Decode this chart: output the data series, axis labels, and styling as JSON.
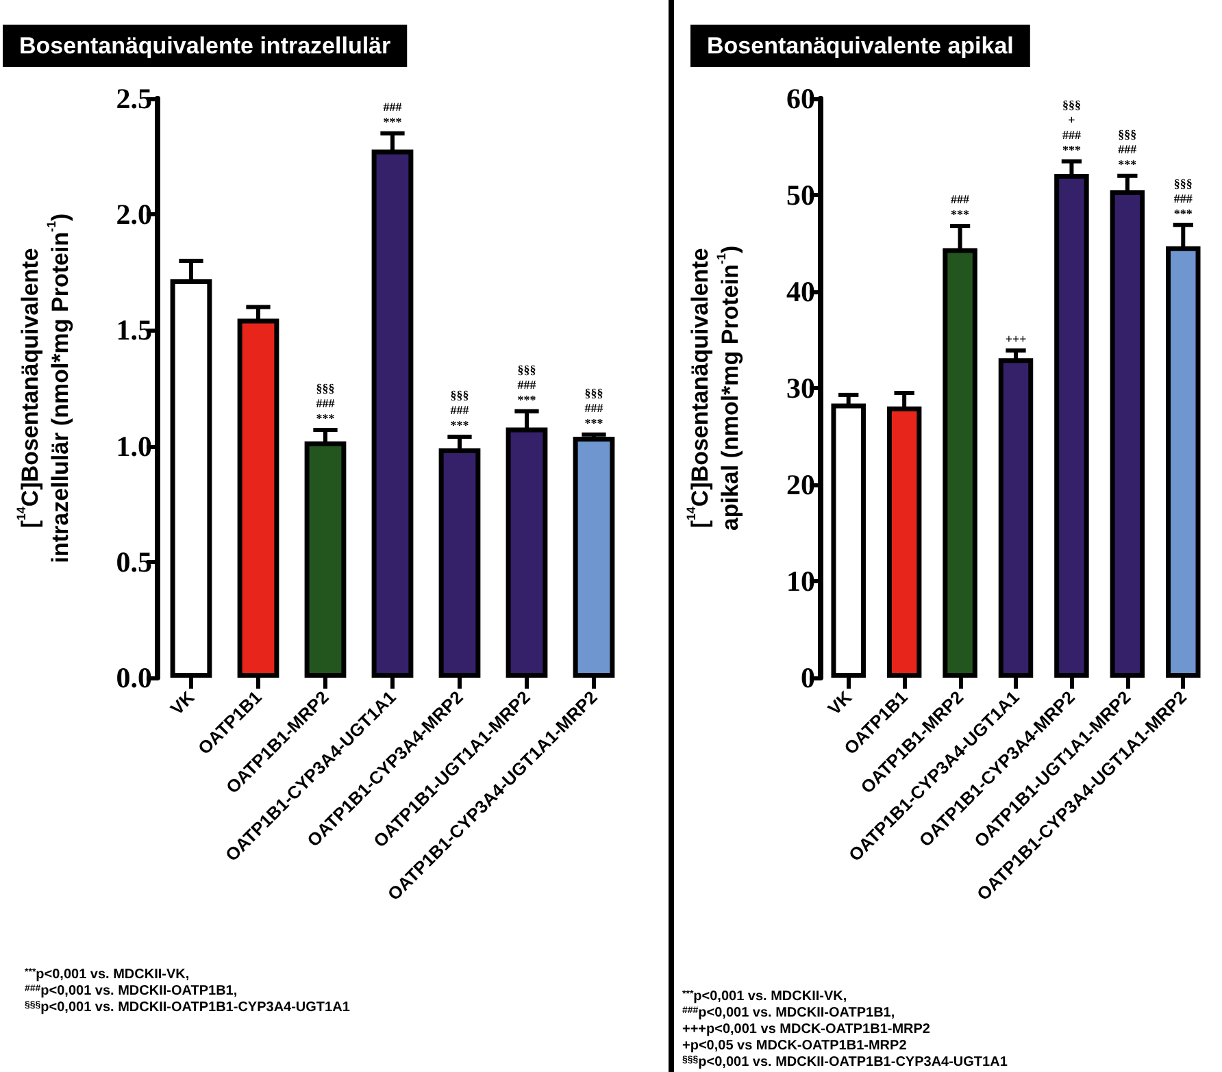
{
  "chart_data": [
    {
      "type": "bar",
      "title": "Bosentanäquivalente intrazellulär",
      "ylabel": "[$^{14}$C]Bosentanäquivalente intrazellulär (nmol*mg Protein$^{-1}$)",
      "categories": [
        "VK",
        "OATP1B1",
        "OATP1B1-MRP2",
        "OATP1B1-CYP3A4-UGT1A1",
        "OATP1B1-CYP3A4-MRP2",
        "OATP1B1-UGT1A1-MRP2",
        "OATP1B1-CYP3A4-UGT1A1-MRP2"
      ],
      "values": [
        1.72,
        1.55,
        1.02,
        2.28,
        0.99,
        1.08,
        1.04
      ],
      "errors": [
        0.08,
        0.05,
        0.05,
        0.07,
        0.05,
        0.07,
        0.01
      ],
      "colors": [
        "#ffffff",
        "#e8251a",
        "#23561e",
        "#35206a",
        "#35206a",
        "#35206a",
        "#6f96cf"
      ],
      "ylim": [
        0,
        2.5
      ],
      "yticks": [
        {
          "value": 0,
          "label": "0.0"
        },
        0.5,
        {
          "value": 1,
          "label": "1.0"
        },
        1.5,
        {
          "value": 2,
          "label": "2.0"
        },
        2.5
      ],
      "annotations": [
        {
          "text": "§§§\n###\n***",
          "x": "OATP1B1-MRP2",
          "y": 1.07
        },
        {
          "text": "###\n***",
          "x": "OATP1B1-CYP3A4-UGT1A1",
          "y": 2.35
        },
        {
          "text": "§§§\n###\n***",
          "x": "OATP1B1-CYP3A4-MRP2",
          "y": 1.04
        },
        {
          "text": "§§§\n###\n***",
          "x": "OATP1B1-UGT1A1-MRP2",
          "y": 1.15
        },
        {
          "text": "§§§\n###\n***",
          "x": "OATP1B1-CYP3A4-UGT1A1-MRP2",
          "y": 1.05
        },
        "$^{***}$p<0,001 vs. MDCKII-VK,",
        "$^{###}$p<0,001 vs. MDCKII-OATP1B1,",
        "$^{§§§}$p<0,001 vs. MDCKII-OATP1B1-CYP3A4-UGT1A1"
      ]
    },
    {
      "type": "bar",
      "title": "Bosentanäquivalente apikal",
      "ylabel": "[$^{14}$C]Bosentanäquivalente apikal (nmol*mg Protein$^{-1}$)",
      "categories": [
        "VK",
        "OATP1B1",
        "OATP1B1-MRP2",
        "OATP1B1-CYP3A4-UGT1A1",
        "OATP1B1-CYP3A4-MRP2",
        "OATP1B1-UGT1A1-MRP2",
        "OATP1B1-CYP3A4-UGT1A1-MRP2"
      ],
      "values": [
        28.4,
        28.1,
        44.5,
        33.1,
        52.2,
        50.5,
        44.7
      ],
      "errors": [
        0.9,
        1.4,
        2.3,
        0.8,
        1.3,
        1.5,
        2.2
      ],
      "colors": [
        "#ffffff",
        "#e8251a",
        "#23561e",
        "#35206a",
        "#35206a",
        "#35206a",
        "#6f96cf"
      ],
      "ylim": [
        0,
        60
      ],
      "yticks": [
        0,
        10,
        20,
        30,
        40,
        50,
        60
      ],
      "annotations": [
        {
          "text": "###\n***",
          "x": "OATP1B1-MRP2",
          "y": 46.8
        },
        {
          "text": "+++",
          "x": "OATP1B1-CYP3A4-UGT1A1",
          "y": 33.9
        },
        {
          "text": "§§§\n+\n###\n***",
          "x": "OATP1B1-CYP3A4-MRP2",
          "y": 53.5
        },
        {
          "text": "§§§\n###\n***",
          "x": "OATP1B1-UGT1A1-MRP2",
          "y": 52.0
        },
        {
          "text": "§§§\n###\n***",
          "x": "OATP1B1-CYP3A4-UGT1A1-MRP2",
          "y": 46.9
        },
        "$^{***}$p<0,001 vs. MDCKII-VK,",
        "$^{###}$p<0,001 vs. MDCKII-OATP1B1,",
        "+++p<0,001 vs MDCK-OATP1B1-MRP2",
        "+p<0,05 vs MDCK-OATP1B1-MRP2",
        "$^{§§§}$p<0,001 vs. MDCKII-OATP1B1-CYP3A4-UGT1A1"
      ]
    }
  ]
}
